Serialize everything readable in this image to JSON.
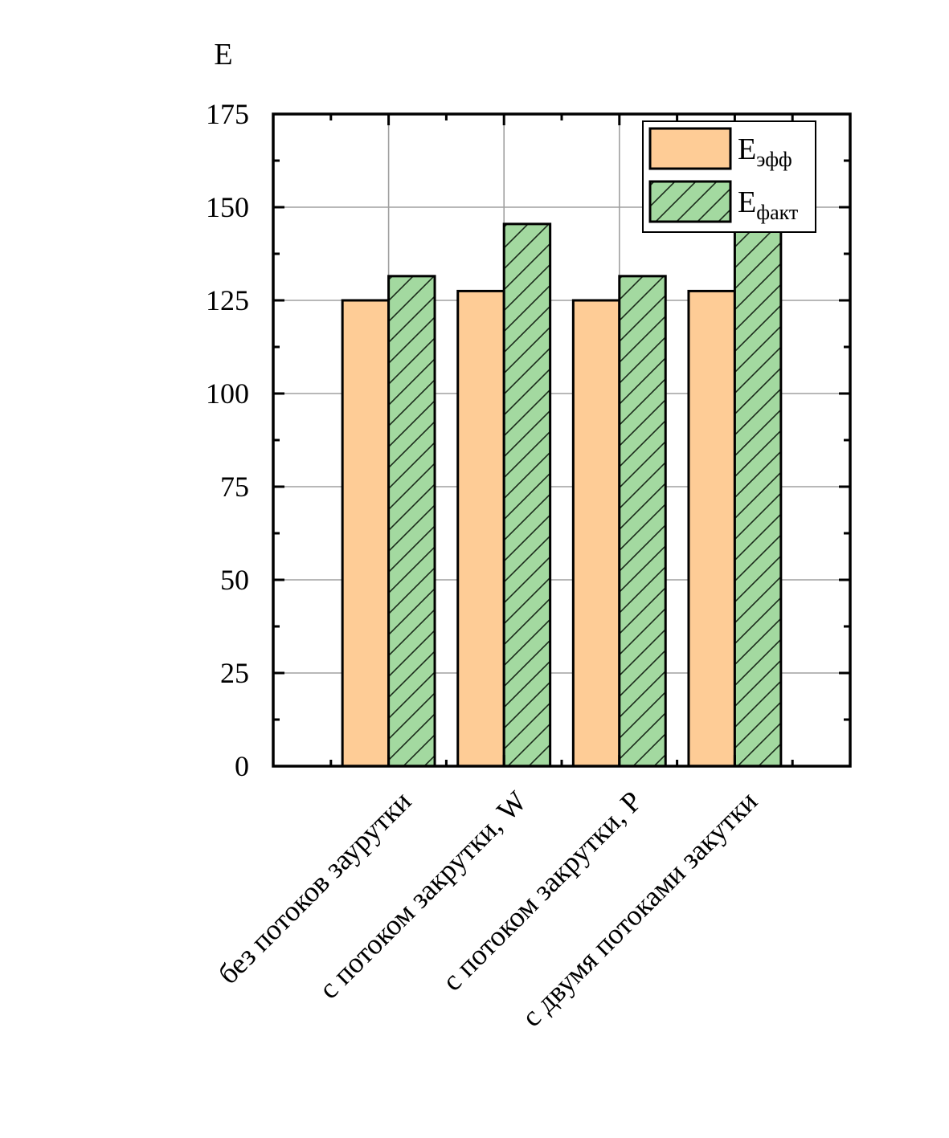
{
  "chart_data": {
    "type": "bar",
    "ylabel": "E",
    "xlabel": "",
    "ylim": [
      0,
      175
    ],
    "yticks": [
      0,
      25,
      50,
      75,
      100,
      125,
      150,
      175
    ],
    "grid": true,
    "legend_position": "top-right",
    "categories": [
      "без потоков заурутки",
      "с потоком закрутки, W",
      "с потоком закрутки, P",
      "с двумя потоками закутки"
    ],
    "series": [
      {
        "name": "эфф",
        "name_main": "E",
        "name_sub": "эфф",
        "color": "#fecc96",
        "hatch": false,
        "values": [
          125,
          127.5,
          125,
          127.5
        ]
      },
      {
        "name": "факт",
        "name_main": "E",
        "name_sub": "факт",
        "color": "#a3d9a0",
        "hatch": true,
        "values": [
          131.5,
          145.5,
          131.5,
          147
        ]
      }
    ]
  }
}
